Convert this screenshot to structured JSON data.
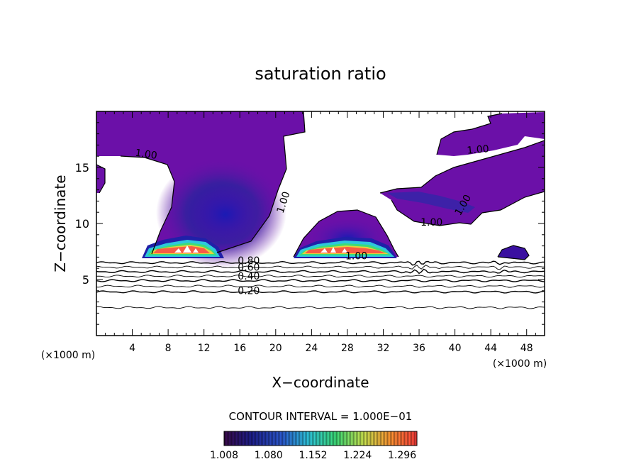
{
  "chart_data": {
    "type": "heatmap",
    "title": "saturation ratio",
    "xlabel": "X−coordinate",
    "ylabel": "Z−coordinate",
    "x_unit_left": "(×1000 m)",
    "x_unit_right": "(×1000 m)",
    "xlim": [
      0,
      50
    ],
    "ylim": [
      0,
      20
    ],
    "x_ticks": [
      4,
      8,
      12,
      16,
      20,
      24,
      28,
      32,
      36,
      40,
      44,
      48
    ],
    "y_ticks": [
      5,
      10,
      15
    ],
    "contour_interval_text": "CONTOUR INTERVAL = 1.000E−01",
    "colorbar": {
      "min": 1.008,
      "max": 1.32,
      "tick_labels": [
        "1.008",
        "1.080",
        "1.152",
        "1.224",
        "1.296"
      ],
      "colors": [
        "#3a0a4a",
        "#1e1e8c",
        "#2c5ad2",
        "#2ec8dc",
        "#3cdc78",
        "#c8e650",
        "#ff9632",
        "#ff3c3c"
      ]
    },
    "contour_labels": [
      {
        "text": "1.00",
        "x": 5.5,
        "y": 15.9,
        "rot": 8
      },
      {
        "text": "1.00",
        "x": 21.2,
        "y": 11.8,
        "rot": -72
      },
      {
        "text": "1.00",
        "x": 42.6,
        "y": 16.3,
        "rot": -5
      },
      {
        "text": "1.00",
        "x": 37.4,
        "y": 9.8,
        "rot": 0
      },
      {
        "text": "1.00",
        "x": 29.0,
        "y": 6.8,
        "rot": 0
      },
      {
        "text": "1.00",
        "x": 41.2,
        "y": 11.5,
        "rot": -60
      },
      {
        "text": "0.80",
        "x": 17.0,
        "y": 6.4,
        "rot": 0
      },
      {
        "text": "0.60",
        "x": 17.0,
        "y": 5.8,
        "rot": 0
      },
      {
        "text": "0.40",
        "x": 17.0,
        "y": 5.0,
        "rot": 0
      },
      {
        "text": "0.20",
        "x": 17.0,
        "y": 3.7,
        "rot": 0
      }
    ],
    "contours": [
      {
        "value": 0.8,
        "y": 6.5
      },
      {
        "value": 0.7,
        "y": 6.1
      },
      {
        "value": 0.6,
        "y": 5.7
      },
      {
        "value": 0.5,
        "y": 5.3
      },
      {
        "value": 0.4,
        "y": 4.9
      },
      {
        "value": 0.3,
        "y": 4.4
      },
      {
        "value": 0.2,
        "y": 3.9
      },
      {
        "value": 0.1,
        "y": 2.5
      }
    ],
    "supersaturated_regions": [
      {
        "name": "left-cloud",
        "x_range": [
          5.3,
          14.2
        ],
        "base": 6.9,
        "top": 8.8,
        "peak": 1.32
      },
      {
        "name": "middle-cloud",
        "x_range": [
          22.2,
          33.2
        ],
        "base": 6.9,
        "top": 8.6,
        "peak": 1.32
      },
      {
        "name": "right-cloud",
        "x_range": [
          44.7,
          47.3
        ],
        "base": 7.0,
        "top": 8.0,
        "peak": 1.04
      }
    ]
  }
}
